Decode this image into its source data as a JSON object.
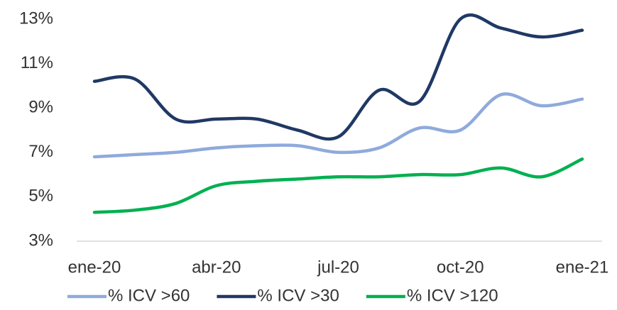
{
  "chart_data": {
    "type": "line",
    "categories": [
      "ene-20",
      null,
      null,
      "abr-20",
      null,
      null,
      "jul-20",
      null,
      null,
      "oct-20",
      null,
      null,
      "ene-21"
    ],
    "series": [
      {
        "name": "% ICV >60",
        "color": "#8faadc",
        "values": [
          6.8,
          6.9,
          7.0,
          7.2,
          7.3,
          7.3,
          7.0,
          7.2,
          8.1,
          8.0,
          9.6,
          9.1,
          9.4
        ]
      },
      {
        "name": "% ICV >30",
        "color": "#203864",
        "values": [
          10.2,
          10.3,
          8.5,
          8.5,
          8.5,
          8.0,
          7.7,
          9.8,
          9.3,
          13.0,
          12.6,
          12.2,
          12.5
        ]
      },
      {
        "name": "% ICV >120",
        "color": "#00b050",
        "values": [
          4.3,
          4.4,
          4.7,
          5.5,
          5.7,
          5.8,
          5.9,
          5.9,
          6.0,
          6.0,
          6.3,
          5.9,
          6.7
        ]
      }
    ],
    "ylim": [
      3,
      13
    ],
    "yticks": [
      {
        "value": 3,
        "label": "3%"
      },
      {
        "value": 5,
        "label": "5%"
      },
      {
        "value": 7,
        "label": "7%"
      },
      {
        "value": 9,
        "label": "9%"
      },
      {
        "value": 11,
        "label": "11%"
      },
      {
        "value": 13,
        "label": "13%"
      }
    ],
    "grid": false,
    "legend": "bottom"
  }
}
